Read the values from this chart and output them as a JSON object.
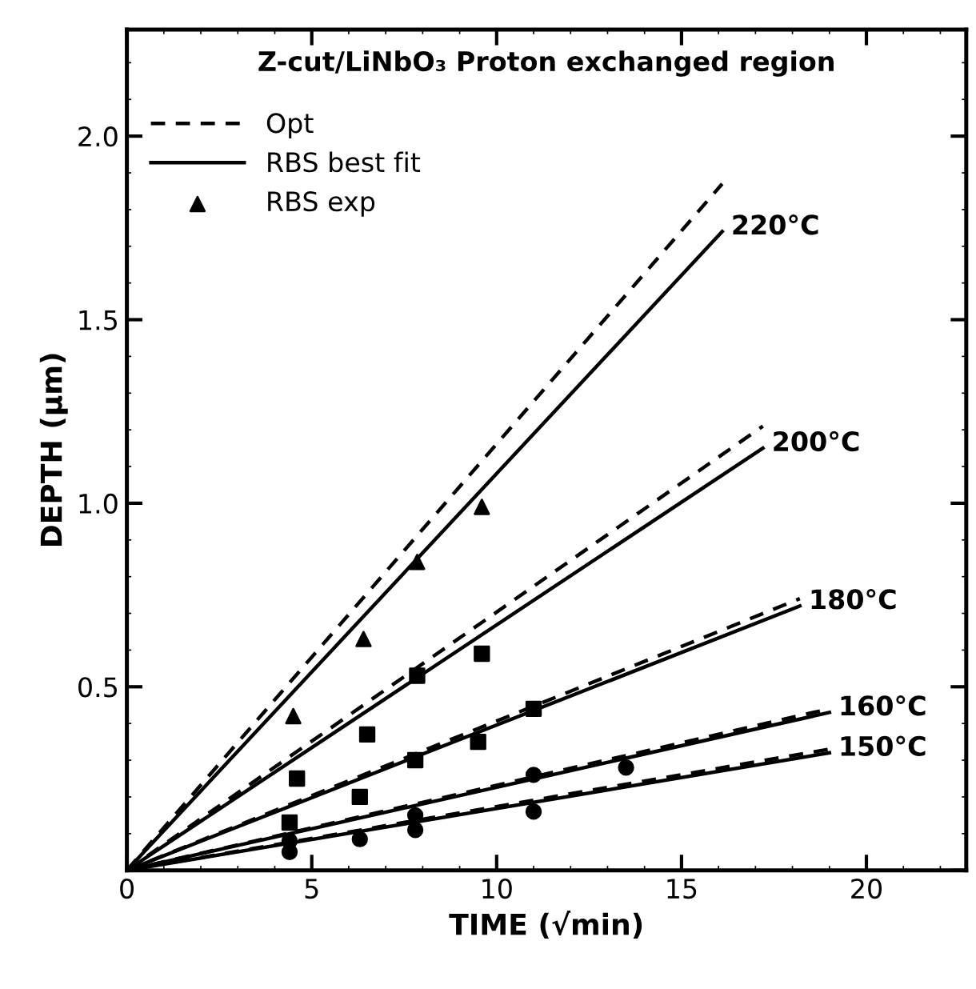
{
  "chart_data": {
    "type": "line",
    "title": "Z-cut/LiNbO₃ Proton exchanged region",
    "xlabel": "TIME (√min)",
    "ylabel": "DEPTH (μm)",
    "xlim": [
      0,
      22.7
    ],
    "ylim": [
      0,
      2.29
    ],
    "xticks": [
      0,
      5,
      10,
      15,
      20
    ],
    "yticks": [
      {
        "value": 0,
        "label": null
      },
      0.5,
      {
        "value": 1,
        "label": "1.0"
      },
      1.5,
      {
        "value": 2,
        "label": "2.0"
      }
    ],
    "legend": "top left",
    "grid": false,
    "series": [
      {
        "name": "Opt",
        "line_style": "dashed",
        "marker": "none",
        "color": "#000000",
        "x": [
          0,
          16.1
        ],
        "values": [
          0,
          1.87
        ]
      },
      {
        "name": "RBS best fit",
        "line_style": "solid",
        "marker": "none",
        "color": "#000000",
        "x": [
          0,
          16.1
        ],
        "values": [
          0,
          1.74
        ]
      },
      {
        "line_style": "dashed",
        "marker": "none",
        "color": "#000000",
        "x": [
          0,
          17.2
        ],
        "values": [
          0,
          1.21
        ]
      },
      {
        "line_style": "solid",
        "marker": "none",
        "color": "#000000",
        "x": [
          0,
          17.2
        ],
        "values": [
          0,
          1.15
        ]
      },
      {
        "line_style": "dashed",
        "marker": "none",
        "color": "#000000",
        "x": [
          0,
          18.2
        ],
        "values": [
          0,
          0.74
        ]
      },
      {
        "line_style": "solid",
        "marker": "none",
        "color": "#000000",
        "x": [
          0,
          18.2
        ],
        "values": [
          0,
          0.72
        ]
      },
      {
        "line_style": "dashed",
        "marker": "none",
        "color": "#000000",
        "x": [
          0,
          19.0
        ],
        "values": [
          0,
          0.44
        ]
      },
      {
        "line_style": "solid",
        "marker": "none",
        "color": "#000000",
        "x": [
          0,
          19.0
        ],
        "values": [
          0,
          0.43
        ]
      },
      {
        "line_style": "dashed",
        "marker": "none",
        "color": "#000000",
        "x": [
          0,
          19.0
        ],
        "values": [
          0,
          0.33
        ]
      },
      {
        "line_style": "solid",
        "marker": "none",
        "color": "#000000",
        "x": [
          0,
          19.0
        ],
        "values": [
          0,
          0.32
        ]
      },
      {
        "name": "RBS exp",
        "type": "scatter",
        "marker": "triangle",
        "color": "#000000",
        "x": [
          4.5,
          6.4,
          7.85,
          9.6
        ],
        "values": [
          0.42,
          0.63,
          0.84,
          0.99
        ]
      },
      {
        "type": "scatter",
        "marker": "square",
        "color": "#000000",
        "x": [
          4.6,
          6.5,
          7.85,
          9.6
        ],
        "values": [
          0.25,
          0.37,
          0.53,
          0.59
        ]
      },
      {
        "type": "scatter",
        "marker": "square",
        "color": "#000000",
        "x": [
          4.4,
          6.3,
          7.8,
          9.5,
          11.0
        ],
        "values": [
          0.13,
          0.2,
          0.3,
          0.35,
          0.44
        ]
      },
      {
        "type": "scatter",
        "marker": "circle",
        "color": "#000000",
        "x": [
          4.4,
          7.8,
          11.0,
          13.5
        ],
        "values": [
          0.08,
          0.15,
          0.26,
          0.28
        ]
      },
      {
        "type": "scatter",
        "marker": "circle",
        "color": "#000000",
        "x": [
          4.4,
          6.3,
          7.8,
          11.0
        ],
        "values": [
          0.05,
          0.085,
          0.11,
          0.16
        ]
      }
    ],
    "annotations": [
      {
        "text": "220°C",
        "x": 16.1,
        "y": 1.74
      },
      {
        "text": "200°C",
        "x": 17.2,
        "y": 1.15
      },
      {
        "text": "180°C",
        "x": 18.2,
        "y": 0.72
      },
      {
        "text": "160°C",
        "x": 19.0,
        "y": 0.43
      },
      {
        "text": "150°C",
        "x": 19.0,
        "y": 0.32
      }
    ]
  }
}
